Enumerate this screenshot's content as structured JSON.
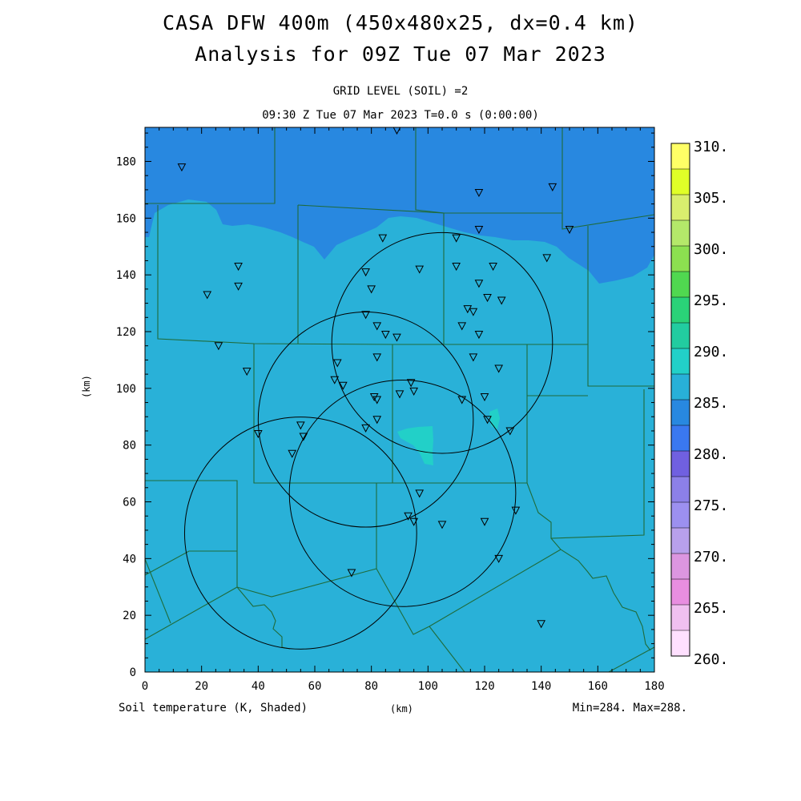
{
  "title_line1": "CASA DFW 400m (450x480x25, dx=0.4 km)",
  "title_line2": "Analysis for 09Z Tue 07 Mar 2023",
  "subtitle_level": "GRID LEVEL (SOIL) =2",
  "subtitle_time": "09:30 Z Tue 07 Mar 2023   T=0.0 s (0:00:00)",
  "field_label": "Soil temperature (K, Shaded)",
  "x_unit_label": "(km)",
  "y_unit_label": "(km)",
  "minmax_label": "Min=284. Max=288.",
  "x_ticks": [
    "0",
    "20",
    "40",
    "60",
    "80",
    "100",
    "120",
    "140",
    "160",
    "180"
  ],
  "y_ticks": [
    "0",
    "20",
    "40",
    "60",
    "80",
    "100",
    "120",
    "140",
    "160",
    "180"
  ],
  "colorbar": {
    "labels": [
      "310.",
      "305.",
      "300.",
      "295.",
      "290.",
      "285.",
      "280.",
      "275.",
      "270.",
      "265.",
      "260."
    ],
    "colors": [
      "#ffff66",
      "#e0ff28",
      "#d9ee6e",
      "#b4e86a",
      "#8ce050",
      "#50d850",
      "#2ad278",
      "#22cca0",
      "#22d0c8",
      "#28b0d8",
      "#2888e0",
      "#3a78f0",
      "#7060e0",
      "#8c80e8",
      "#9c90f0",
      "#b8a0ec",
      "#dc96e0",
      "#e88ee0",
      "#f0c0f0",
      "#ffe0ff"
    ]
  },
  "field_colors": {
    "main": "#29b1d8",
    "cold": "#2888e0",
    "warm": "#22d0c8",
    "boundary": "#1f6b3a"
  },
  "map": {
    "x_range": [
      0,
      180
    ],
    "y_range": [
      0,
      192
    ],
    "radar_circles": [
      {
        "cx": 105,
        "cy": 116,
        "r": 39
      },
      {
        "cx": 78,
        "cy": 89,
        "r": 38
      },
      {
        "cx": 91,
        "cy": 63,
        "r": 40
      },
      {
        "cx": 55,
        "cy": 49,
        "r": 41
      }
    ],
    "stations": [
      [
        13,
        178
      ],
      [
        89,
        191
      ],
      [
        118,
        169
      ],
      [
        144,
        171
      ],
      [
        22,
        133
      ],
      [
        33,
        143
      ],
      [
        33,
        136
      ],
      [
        150,
        156
      ],
      [
        118,
        156
      ],
      [
        142,
        146
      ],
      [
        84,
        153
      ],
      [
        110,
        153
      ],
      [
        78,
        141
      ],
      [
        97,
        142
      ],
      [
        110,
        143
      ],
      [
        123,
        143
      ],
      [
        80,
        135
      ],
      [
        118,
        137
      ],
      [
        121,
        132
      ],
      [
        126,
        131
      ],
      [
        78,
        126
      ],
      [
        114,
        128
      ],
      [
        116,
        127
      ],
      [
        82,
        122
      ],
      [
        112,
        122
      ],
      [
        85,
        119
      ],
      [
        89,
        118
      ],
      [
        118,
        119
      ],
      [
        26,
        115
      ],
      [
        82,
        111
      ],
      [
        116,
        111
      ],
      [
        68,
        109
      ],
      [
        36,
        106
      ],
      [
        125,
        107
      ],
      [
        67,
        103
      ],
      [
        70,
        101
      ],
      [
        94,
        102
      ],
      [
        95,
        99
      ],
      [
        90,
        98
      ],
      [
        81,
        97
      ],
      [
        120,
        97
      ],
      [
        82,
        96
      ],
      [
        112,
        96
      ],
      [
        82,
        89
      ],
      [
        121,
        89
      ],
      [
        55,
        87
      ],
      [
        78,
        86
      ],
      [
        129,
        85
      ],
      [
        40,
        84
      ],
      [
        56,
        83
      ],
      [
        52,
        77
      ],
      [
        97,
        63
      ],
      [
        131,
        57
      ],
      [
        93,
        55
      ],
      [
        95,
        53
      ],
      [
        120,
        53
      ],
      [
        105,
        52
      ],
      [
        125,
        40
      ],
      [
        73,
        35
      ],
      [
        140,
        17
      ]
    ]
  }
}
